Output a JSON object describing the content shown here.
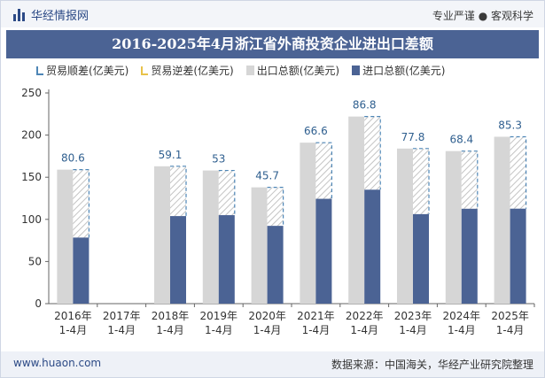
{
  "header": {
    "brand": "华经情报网",
    "tagline": "专业严谨 ● 客观科学"
  },
  "chart_data": {
    "type": "bar",
    "title": "2016-2025年4月浙江省外商投资企业进出口差额",
    "categories": [
      "2016年\n1-4月",
      "2017年\n1-4月",
      "2018年\n1-4月",
      "2019年\n1-4月",
      "2020年\n1-4月",
      "2021年\n1-4月",
      "2022年\n1-4月",
      "2023年\n1-4月",
      "2024年\n1-4月",
      "2025年\n1-4月"
    ],
    "series": [
      {
        "name": "贸易顺差(亿美元)",
        "values": [
          80.6,
          null,
          59.1,
          53,
          45.7,
          66.6,
          86.8,
          77.8,
          68.4,
          85.3
        ]
      },
      {
        "name": "贸易逆差(亿美元)",
        "values": [
          null,
          null,
          null,
          null,
          null,
          null,
          null,
          null,
          null,
          null
        ]
      },
      {
        "name": "出口总额(亿美元)",
        "values": [
          159,
          null,
          163,
          158,
          138,
          191,
          222,
          184,
          181,
          198
        ]
      },
      {
        "name": "进口总额(亿美元)",
        "values": [
          78.4,
          null,
          103.9,
          105,
          92.3,
          124.4,
          135.2,
          106.2,
          112.6,
          112.7
        ]
      }
    ],
    "yticks": [
      "0",
      "50",
      "100",
      "150",
      "200",
      "250"
    ],
    "ylim": [
      0,
      250
    ],
    "grid": false,
    "legend_position": "top",
    "colors": {
      "export": "#d6d6d6",
      "import": "#4b6394",
      "surplus_border": "#4e86b6",
      "deficit_border": "#e8c24a",
      "label": "#2f5f8f"
    }
  },
  "footer": {
    "website": "www.huaon.com",
    "source": "数据来源：中国海关，华经产业研究院整理"
  }
}
